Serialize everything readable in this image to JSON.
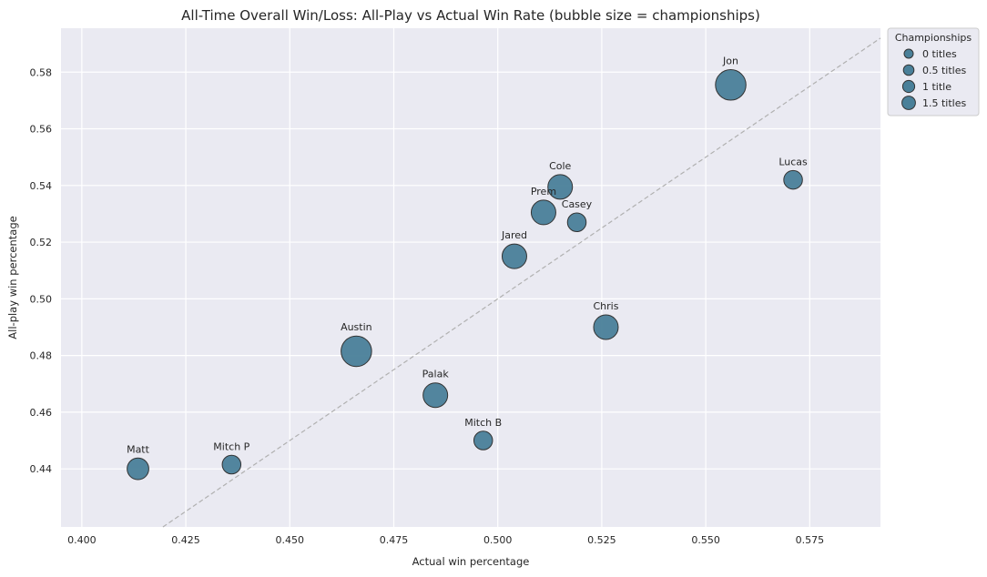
{
  "chart_data": {
    "type": "scatter",
    "title": "All-Time Overall Win/Loss: All-Play vs Actual Win Rate (bubble size = championships)",
    "xlabel": "Actual win percentage",
    "ylabel": "All-play win percentage",
    "xlim": [
      0.395,
      0.592
    ],
    "ylim": [
      0.4195,
      0.5955
    ],
    "x_ticks": [
      0.4,
      0.425,
      0.45,
      0.475,
      0.5,
      0.525,
      0.55,
      0.575
    ],
    "x_tick_labels": [
      "0.400",
      "0.425",
      "0.450",
      "0.475",
      "0.500",
      "0.525",
      "0.550",
      "0.575"
    ],
    "y_ticks": [
      0.44,
      0.46,
      0.48,
      0.5,
      0.52,
      0.54,
      0.56,
      0.58
    ],
    "y_tick_labels": [
      "0.44",
      "0.46",
      "0.48",
      "0.50",
      "0.52",
      "0.54",
      "0.56",
      "0.58"
    ],
    "grid": true,
    "reference_line": "y = x",
    "point_color": "#4a8099",
    "background_color": "#eaeaf2",
    "points": [
      {
        "name": "Jon",
        "x": 0.556,
        "y": 0.5755,
        "championships": 1.5
      },
      {
        "name": "Lucas",
        "x": 0.571,
        "y": 0.542,
        "championships": 0.5
      },
      {
        "name": "Cole",
        "x": 0.515,
        "y": 0.5395,
        "championships": 1
      },
      {
        "name": "Prem",
        "x": 0.511,
        "y": 0.5305,
        "championships": 1
      },
      {
        "name": "Casey",
        "x": 0.519,
        "y": 0.527,
        "championships": 0.5
      },
      {
        "name": "Jared",
        "x": 0.504,
        "y": 0.515,
        "championships": 1
      },
      {
        "name": "Chris",
        "x": 0.526,
        "y": 0.49,
        "championships": 1
      },
      {
        "name": "Austin",
        "x": 0.466,
        "y": 0.4815,
        "championships": 1.5
      },
      {
        "name": "Palak",
        "x": 0.485,
        "y": 0.466,
        "championships": 1
      },
      {
        "name": "Mitch B",
        "x": 0.4965,
        "y": 0.45,
        "championships": 0.5
      },
      {
        "name": "Mitch P",
        "x": 0.436,
        "y": 0.4415,
        "championships": 0.5
      },
      {
        "name": "Matt",
        "x": 0.4135,
        "y": 0.44,
        "championships": 0.75
      }
    ],
    "legend": {
      "title": "Championships",
      "placement": "outside-top-right",
      "entries": [
        {
          "label": "0 titles",
          "championships": 0
        },
        {
          "label": "0.5 titles",
          "championships": 0.5
        },
        {
          "label": "1 title",
          "championships": 1
        },
        {
          "label": "1.5 titles",
          "championships": 1.5
        }
      ]
    }
  }
}
